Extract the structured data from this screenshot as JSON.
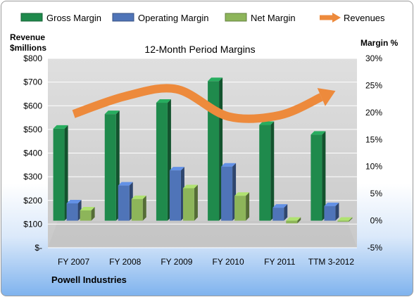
{
  "chart_data": {
    "type": "bar",
    "title": "12-Month Period Margins",
    "left_axis_label_line1": "Revenue",
    "left_axis_label_line2": "$millions",
    "right_axis_label": "Margin %",
    "footer": "Powell Industries",
    "categories": [
      "FY 2007",
      "FY 2008",
      "FY 2009",
      "FY 2010",
      "FY 2011",
      "TTM 3-2012"
    ],
    "left_axis": {
      "min": 0,
      "max": 800,
      "step": 100,
      "tick_labels": [
        "$-",
        "$100",
        "$200",
        "$300",
        "$400",
        "$500",
        "$600",
        "$700",
        "$800"
      ]
    },
    "right_axis": {
      "min": -5,
      "max": 30,
      "step": 5,
      "tick_labels": [
        "-5%",
        "0%",
        "5%",
        "10%",
        "15%",
        "20%",
        "25%",
        "30%"
      ]
    },
    "series": [
      {
        "name": "Gross Margin",
        "axis": "right",
        "color": "#1f8a4c",
        "values": [
          17.0,
          19.7,
          21.8,
          25.8,
          17.7,
          15.9
        ]
      },
      {
        "name": "Operating Margin",
        "axis": "right",
        "color": "#4f74b8",
        "values": [
          3.2,
          6.5,
          9.3,
          10.0,
          2.4,
          2.7
        ]
      },
      {
        "name": "Net Margin",
        "axis": "right",
        "color": "#8db55a",
        "values": [
          1.9,
          4.0,
          6.0,
          4.6,
          -0.5,
          0.0
        ]
      },
      {
        "name": "Revenues",
        "axis": "left",
        "type": "line",
        "color": "#ed8a3c",
        "values": [
          565,
          640,
          670,
          555,
          560,
          655
        ]
      }
    ],
    "legend_position": "top",
    "grid": true
  }
}
